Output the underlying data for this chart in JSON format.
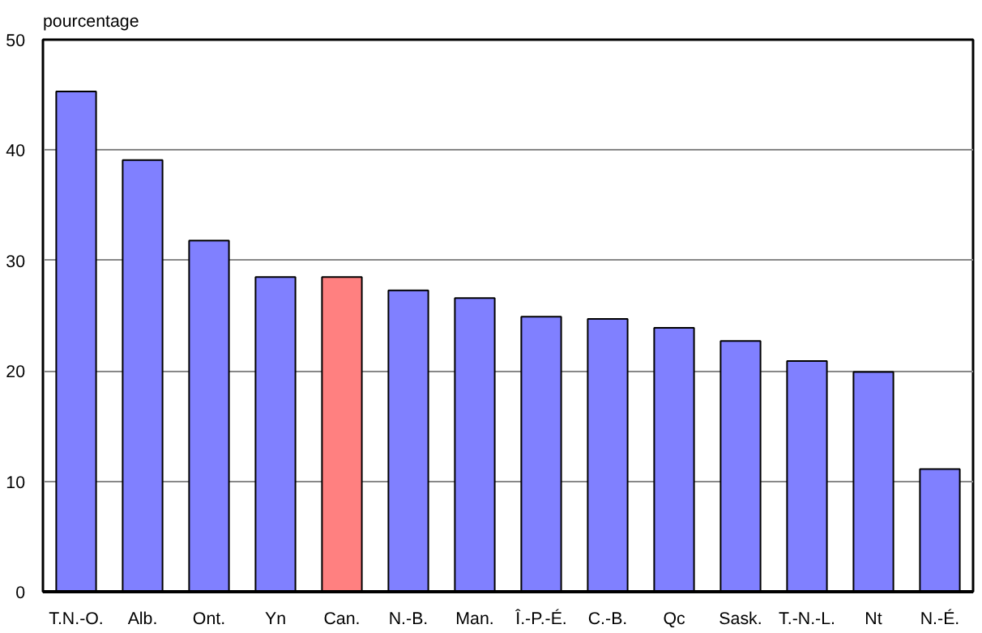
{
  "chart_data": {
    "type": "bar",
    "ylabel": "pourcentage",
    "categories": [
      "T.N.-O.",
      "Alb.",
      "Ont.",
      "Yn",
      "Can.",
      "N.-B.",
      "Man.",
      "Î.-P.-É.",
      "C.-B.",
      "Qc",
      "Sask.",
      "T.-N.-L.",
      "Nt",
      "N.-É."
    ],
    "values": [
      45.3,
      39.1,
      31.8,
      28.5,
      28.5,
      27.3,
      26.6,
      24.9,
      24.7,
      23.9,
      22.7,
      20.9,
      19.9,
      11.1
    ],
    "colors": [
      "#8080ff",
      "#8080ff",
      "#8080ff",
      "#8080ff",
      "#ff8080",
      "#8080ff",
      "#8080ff",
      "#8080ff",
      "#8080ff",
      "#8080ff",
      "#8080ff",
      "#8080ff",
      "#8080ff",
      "#8080ff"
    ],
    "ylim": [
      0,
      50
    ],
    "yticks": [
      0,
      10,
      20,
      30,
      40,
      50
    ],
    "grid": "y"
  }
}
